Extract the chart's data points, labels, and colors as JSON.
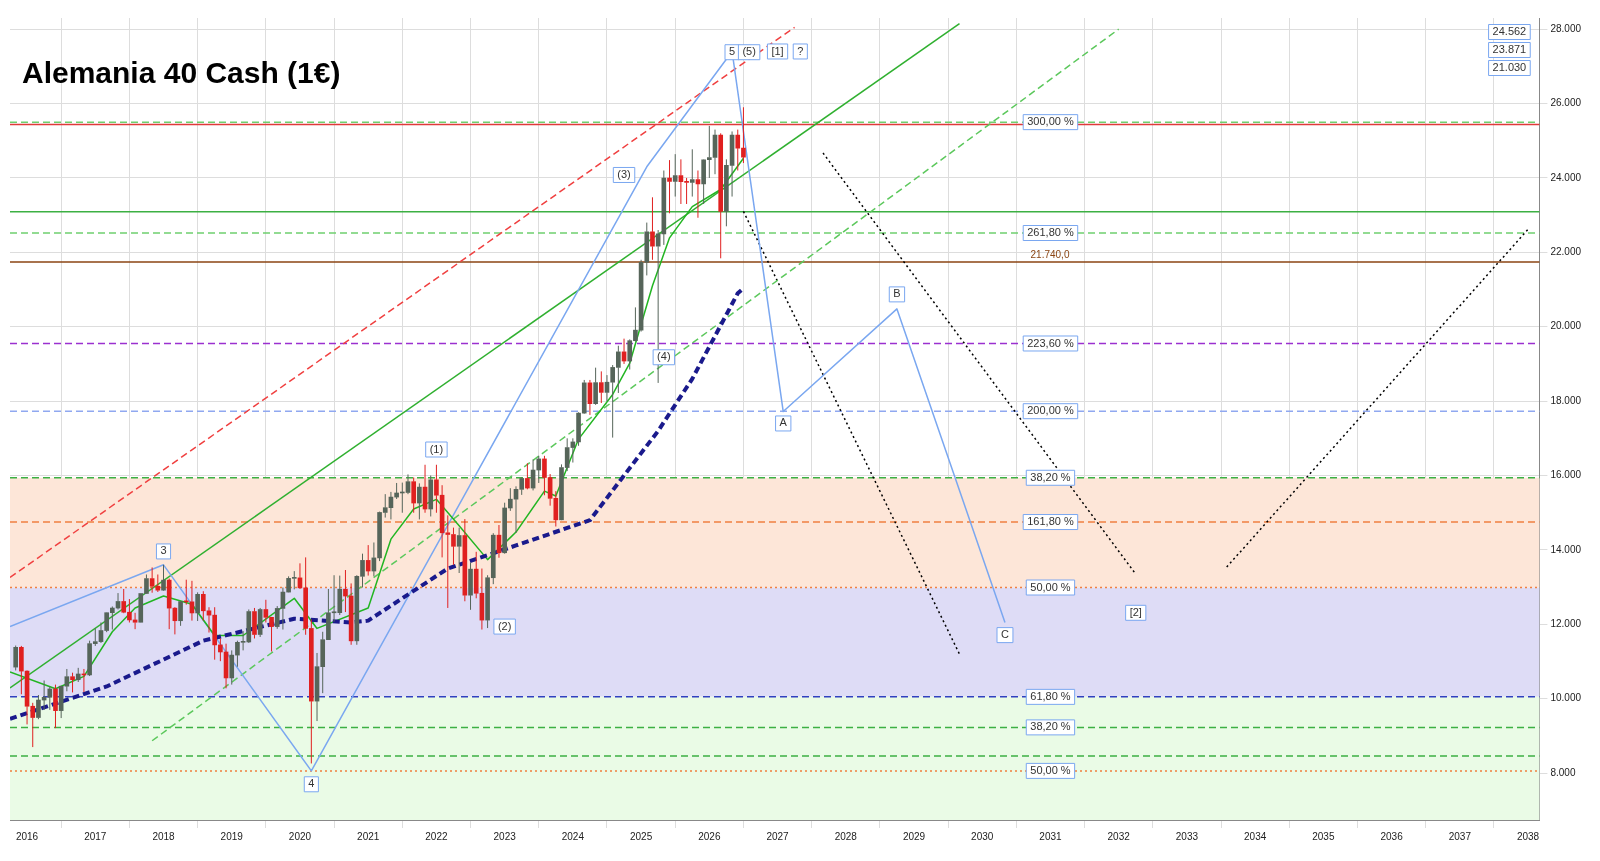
{
  "chart_data": {
    "type": "candlestick",
    "title": "Alemania 40 Cash (1€)",
    "x": [
      "2015-11",
      "2015-12",
      "2016-01",
      "2016-02",
      "2016-03",
      "2016-04",
      "2016-05",
      "2016-06",
      "2016-07",
      "2016-08",
      "2016-09",
      "2016-10",
      "2016-11",
      "2016-12",
      "2017-01",
      "2017-02",
      "2017-03",
      "2017-04",
      "2017-05",
      "2017-06",
      "2017-07",
      "2017-08",
      "2017-09",
      "2017-10",
      "2017-11",
      "2017-12",
      "2018-01",
      "2018-02",
      "2018-03",
      "2018-04",
      "2018-05",
      "2018-06",
      "2018-07",
      "2018-08",
      "2018-09",
      "2018-10",
      "2018-11",
      "2018-12",
      "2019-01",
      "2019-02",
      "2019-03",
      "2019-04",
      "2019-05",
      "2019-06",
      "2019-07",
      "2019-08",
      "2019-09",
      "2019-10",
      "2019-11",
      "2019-12",
      "2020-01",
      "2020-02",
      "2020-03",
      "2020-04",
      "2020-05",
      "2020-06",
      "2020-07",
      "2020-08",
      "2020-09",
      "2020-10",
      "2020-11",
      "2020-12",
      "2021-01",
      "2021-02",
      "2021-03",
      "2021-04",
      "2021-05",
      "2021-06",
      "2021-07",
      "2021-08",
      "2021-09",
      "2021-10",
      "2021-11",
      "2021-12",
      "2022-01",
      "2022-02",
      "2022-03",
      "2022-04",
      "2022-05",
      "2022-06",
      "2022-07",
      "2022-08",
      "2022-09",
      "2022-10",
      "2022-11",
      "2022-12",
      "2023-01",
      "2023-02",
      "2023-03",
      "2023-04",
      "2023-05",
      "2023-06",
      "2023-07",
      "2023-08",
      "2023-09",
      "2023-10",
      "2023-11",
      "2023-12",
      "2024-01",
      "2024-02",
      "2024-03",
      "2024-04",
      "2024-05",
      "2024-06",
      "2024-07",
      "2024-08",
      "2024-09",
      "2024-10",
      "2024-11",
      "2024-12",
      "2025-01",
      "2025-02",
      "2025-03",
      "2025-04",
      "2025-05",
      "2025-06",
      "2025-07",
      "2025-08",
      "2025-09",
      "2025-10",
      "2025-11",
      "2025-12",
      "2026-01",
      "2026-02",
      "2026-03",
      "2026-04",
      "2026-05",
      "2026-06",
      "2026-07"
    ],
    "ohlc": [
      [
        10850,
        11430,
        10760,
        11382
      ],
      [
        11382,
        11420,
        10120,
        10743
      ],
      [
        10743,
        10760,
        9310,
        9798
      ],
      [
        9798,
        9890,
        8700,
        9495
      ],
      [
        9495,
        10100,
        9450,
        9965
      ],
      [
        9965,
        10490,
        9700,
        10039
      ],
      [
        10039,
        10330,
        9700,
        10263
      ],
      [
        10263,
        10380,
        9210,
        9680
      ],
      [
        9680,
        10340,
        9480,
        10337
      ],
      [
        10337,
        10800,
        10200,
        10593
      ],
      [
        10593,
        10700,
        10170,
        10511
      ],
      [
        10511,
        10830,
        10450,
        10665
      ],
      [
        10665,
        10800,
        10180,
        10640
      ],
      [
        10640,
        11560,
        10610,
        11481
      ],
      [
        11481,
        11890,
        11420,
        11535
      ],
      [
        11535,
        12050,
        11500,
        11834
      ],
      [
        11834,
        12320,
        11790,
        12313
      ],
      [
        12313,
        12480,
        11860,
        12438
      ],
      [
        12438,
        12840,
        12400,
        12615
      ],
      [
        12615,
        12950,
        12300,
        12325
      ],
      [
        12325,
        12680,
        12050,
        12118
      ],
      [
        12118,
        12310,
        11870,
        12056
      ],
      [
        12056,
        12830,
        12050,
        12829
      ],
      [
        12829,
        13340,
        12820,
        13230
      ],
      [
        13230,
        13530,
        12850,
        13024
      ],
      [
        13024,
        13340,
        12870,
        12918
      ],
      [
        12918,
        13600,
        12900,
        13189
      ],
      [
        13189,
        13230,
        11870,
        12436
      ],
      [
        12436,
        12460,
        11730,
        12097
      ],
      [
        12097,
        12620,
        11960,
        12612
      ],
      [
        12612,
        13200,
        12530,
        12605
      ],
      [
        12605,
        13170,
        12100,
        12306
      ],
      [
        12306,
        12860,
        12090,
        12806
      ],
      [
        12806,
        12890,
        12100,
        12364
      ],
      [
        12364,
        12460,
        11780,
        12247
      ],
      [
        12247,
        12460,
        11050,
        11447
      ],
      [
        11447,
        11620,
        11010,
        11257
      ],
      [
        11257,
        11480,
        10280,
        10559
      ],
      [
        10559,
        11300,
        10380,
        11173
      ],
      [
        11173,
        11560,
        10860,
        11516
      ],
      [
        11516,
        11820,
        11300,
        11526
      ],
      [
        11526,
        12400,
        11500,
        12344
      ],
      [
        12344,
        12440,
        11620,
        11727
      ],
      [
        11727,
        12440,
        11660,
        12399
      ],
      [
        12399,
        12660,
        12050,
        12189
      ],
      [
        12189,
        12200,
        11270,
        11939
      ],
      [
        11939,
        12490,
        11880,
        12428
      ],
      [
        12428,
        12990,
        11860,
        12867
      ],
      [
        12867,
        13290,
        12860,
        13236
      ],
      [
        13236,
        13430,
        12940,
        13249
      ],
      [
        13249,
        13640,
        12950,
        12981
      ],
      [
        12981,
        13800,
        11720,
        11890
      ],
      [
        11890,
        12130,
        8260,
        9936
      ],
      [
        9936,
        11230,
        9400,
        10862
      ],
      [
        10862,
        11800,
        10150,
        11587
      ],
      [
        11587,
        12950,
        11580,
        12311
      ],
      [
        12311,
        13320,
        12070,
        12313
      ],
      [
        12313,
        13310,
        12250,
        12945
      ],
      [
        12945,
        13460,
        12330,
        12761
      ],
      [
        12761,
        13100,
        11450,
        11556
      ],
      [
        11556,
        13320,
        11450,
        13291
      ],
      [
        13291,
        13900,
        12990,
        13719
      ],
      [
        13719,
        14130,
        13310,
        13433
      ],
      [
        13433,
        14200,
        13290,
        13786
      ],
      [
        13786,
        15030,
        13700,
        15008
      ],
      [
        15008,
        15500,
        14870,
        15136
      ],
      [
        15136,
        15560,
        14820,
        15421
      ],
      [
        15421,
        15800,
        15370,
        15531
      ],
      [
        15531,
        15810,
        15000,
        15544
      ],
      [
        15544,
        16030,
        15500,
        15835
      ],
      [
        15835,
        15950,
        15000,
        15261
      ],
      [
        15261,
        15790,
        14820,
        15689
      ],
      [
        15689,
        16290,
        15000,
        15100
      ],
      [
        15100,
        16000,
        14900,
        15885
      ],
      [
        15885,
        16290,
        15000,
        15471
      ],
      [
        15471,
        15740,
        13800,
        14461
      ],
      [
        14461,
        14930,
        12440,
        14415
      ],
      [
        14415,
        14600,
        13600,
        14098
      ],
      [
        14098,
        14600,
        13380,
        14388
      ],
      [
        14388,
        14830,
        12620,
        12784
      ],
      [
        12784,
        13660,
        12390,
        13484
      ],
      [
        13484,
        13950,
        12700,
        12835
      ],
      [
        12835,
        13500,
        11860,
        12114
      ],
      [
        12114,
        13320,
        11900,
        13253
      ],
      [
        13253,
        14450,
        13080,
        14397
      ],
      [
        14397,
        14670,
        13790,
        13924
      ],
      [
        13924,
        15270,
        13900,
        15128
      ],
      [
        15128,
        15660,
        15050,
        15365
      ],
      [
        15365,
        15710,
        14460,
        15629
      ],
      [
        15629,
        15950,
        15480,
        15922
      ],
      [
        15922,
        16330,
        15630,
        15664
      ],
      [
        15664,
        16430,
        15600,
        16148
      ],
      [
        16148,
        16530,
        15800,
        16447
      ],
      [
        16447,
        16530,
        15470,
        15947
      ],
      [
        15947,
        16040,
        15190,
        15387
      ],
      [
        15387,
        15580,
        14630,
        14810
      ],
      [
        14810,
        16300,
        14800,
        16215
      ],
      [
        16215,
        17000,
        16120,
        16752
      ],
      [
        16752,
        17000,
        16350,
        16904
      ],
      [
        16904,
        17700,
        16800,
        17678
      ],
      [
        17678,
        18570,
        17660,
        18492
      ],
      [
        18492,
        18570,
        17630,
        17932
      ],
      [
        17932,
        18900,
        17900,
        18498
      ],
      [
        18498,
        18800,
        17950,
        18235
      ],
      [
        18235,
        18700,
        18000,
        18509
      ],
      [
        18509,
        18970,
        17020,
        18907
      ],
      [
        18907,
        19490,
        18220,
        19325
      ],
      [
        19325,
        19680,
        19000,
        19078
      ],
      [
        19078,
        19660,
        18850,
        19626
      ],
      [
        19626,
        20520,
        19600,
        19909
      ],
      [
        19909,
        21800,
        19870,
        21732
      ],
      [
        21732,
        22800,
        21380,
        22551
      ],
      [
        22551,
        23480,
        21800,
        22163
      ],
      [
        22163,
        22600,
        18490,
        22497
      ],
      [
        22497,
        24200,
        22200,
        23997
      ],
      [
        23997,
        24480,
        23050,
        23909
      ],
      [
        23909,
        24640,
        23500,
        24065
      ],
      [
        24065,
        24500,
        23300,
        23902
      ],
      [
        23902,
        24000,
        23300,
        23881
      ],
      [
        23881,
        24770,
        23500,
        23958
      ],
      [
        23958,
        24200,
        22930,
        23837
      ],
      [
        23837,
        24500,
        23300,
        24490
      ],
      [
        24490,
        25400,
        24000,
        24550
      ],
      [
        24550,
        25300,
        24100,
        25150
      ],
      [
        25150,
        25200,
        21840,
        23100
      ],
      [
        23100,
        24500,
        22700,
        24340
      ],
      [
        24340,
        25250,
        23500,
        25150
      ],
      [
        25150,
        25300,
        24200,
        24800
      ],
      [
        24800,
        25900,
        24400,
        24562
      ]
    ],
    "colors": [
      "#56655a",
      "#e02020",
      "#e02020",
      "#e02020",
      "#56655a",
      "#56655a",
      "#56655a",
      "#e02020",
      "#56655a",
      "#56655a",
      "#e02020",
      "#56655a",
      "#e02020",
      "#56655a",
      "#56655a",
      "#56655a",
      "#56655a",
      "#56655a",
      "#56655a",
      "#e02020",
      "#e02020",
      "#e02020",
      "#56655a",
      "#56655a",
      "#e02020",
      "#e02020",
      "#56655a",
      "#e02020",
      "#e02020",
      "#56655a",
      "#e02020",
      "#e02020",
      "#56655a",
      "#e02020",
      "#e02020",
      "#e02020",
      "#e02020",
      "#e02020",
      "#56655a",
      "#56655a",
      "#56655a",
      "#56655a",
      "#e02020",
      "#56655a",
      "#e02020",
      "#e02020",
      "#56655a",
      "#56655a",
      "#56655a",
      "#56655a",
      "#e02020",
      "#e02020",
      "#e02020",
      "#56655a",
      "#56655a",
      "#56655a",
      "#56655a",
      "#56655a",
      "#e02020",
      "#e02020",
      "#56655a",
      "#56655a",
      "#e02020",
      "#56655a",
      "#56655a",
      "#56655a",
      "#56655a",
      "#56655a",
      "#56655a",
      "#56655a",
      "#e02020",
      "#56655a",
      "#e02020",
      "#56655a",
      "#e02020",
      "#e02020",
      "#e02020",
      "#e02020",
      "#56655a",
      "#e02020",
      "#56655a",
      "#e02020",
      "#e02020",
      "#56655a",
      "#56655a",
      "#e02020",
      "#56655a",
      "#56655a",
      "#56655a",
      "#56655a",
      "#e02020",
      "#56655a",
      "#56655a",
      "#e02020",
      "#e02020",
      "#e02020",
      "#56655a",
      "#56655a",
      "#56655a",
      "#56655a",
      "#56655a",
      "#e02020",
      "#56655a",
      "#e02020",
      "#56655a",
      "#56655a",
      "#56655a",
      "#e02020",
      "#56655a",
      "#56655a",
      "#56655a",
      "#56655a",
      "#e02020",
      "#56655a",
      "#56655a",
      "#e02020",
      "#56655a",
      "#e02020",
      "#e02020",
      "#56655a",
      "#e02020",
      "#56655a",
      "#56655a",
      "#56655a",
      "#e02020",
      "#56655a",
      "#56655a",
      "#e02020",
      "#e02020"
    ],
    "series": [
      {
        "type": "line",
        "color": "#1a1a8c",
        "line_style": "dashed",
        "x": [
          "2015-10",
          "2017-03",
          "2018-08",
          "2019-12",
          "2020-10",
          "2021-01",
          "2022-03",
          "2023-03",
          "2024-04",
          "2025-04",
          "2025-10",
          "2026-06",
          "2026-07"
        ],
        "values": [
          9460,
          10330,
          11560,
          12150,
          12050,
          12100,
          13500,
          14120,
          14800,
          17200,
          18600,
          20900,
          21030
        ]
      },
      {
        "type": "line",
        "color": "#22b522",
        "line_style": "solid",
        "x": [
          "2015-10",
          "2016-06",
          "2016-11",
          "2017-04",
          "2017-08",
          "2018-01",
          "2018-06",
          "2018-10",
          "2019-03",
          "2019-12",
          "2020-04",
          "2021-01",
          "2021-05",
          "2021-09",
          "2022-01",
          "2022-05",
          "2022-10",
          "2023-03",
          "2023-08",
          "2023-10",
          "2024-02",
          "2024-08",
          "2024-11",
          "2025-03",
          "2025-06",
          "2025-10",
          "2026-03",
          "2026-07"
        ],
        "values": [
          10720,
          10270,
          10600,
          11800,
          12440,
          12760,
          12540,
          11700,
          11700,
          12700,
          11890,
          12440,
          14290,
          15100,
          15360,
          14650,
          13740,
          14480,
          15580,
          15450,
          16980,
          18180,
          19020,
          21100,
          22390,
          23230,
          23690,
          24530
        ]
      },
      {
        "type": "line",
        "color": "#7aa7f0",
        "line_style": "solid",
        "x": [
          "2015-10",
          "2018-01",
          "2020-03",
          "2025-02",
          "2026-05",
          "2027-02",
          "2028-10",
          "2030-05"
        ],
        "values": [
          11940,
          13600,
          8060,
          24300,
          27400,
          17720,
          20480,
          12050
        ]
      },
      {
        "type": "line",
        "color": "#f04040",
        "line_style": "dashed",
        "x": [
          "2015-10",
          "2027-04"
        ],
        "values": [
          13260,
          28050
        ]
      },
      {
        "type": "line",
        "color": "#30b030",
        "line_style": "solid",
        "x": [
          "2015-10",
          "2029-09"
        ],
        "values": [
          10290,
          28150
        ]
      },
      {
        "type": "line",
        "color": "#5cc85c",
        "line_style": "dashed",
        "x": [
          "2017-11",
          "2032-01"
        ],
        "values": [
          8870,
          28000
        ]
      },
      {
        "type": "line",
        "color": "#000000",
        "line_style": "dotted",
        "x": [
          "2026-07",
          "2029-09"
        ],
        "values": [
          23100,
          11200
        ]
      },
      {
        "type": "line",
        "color": "#000000",
        "line_style": "dotted",
        "x": [
          "2027-09",
          "2032-04"
        ],
        "values": [
          24670,
          13350
        ]
      },
      {
        "type": "line",
        "color": "#000000",
        "line_style": "dotted",
        "x": [
          "2033-08",
          "2038-01"
        ],
        "values": [
          13540,
          22620
        ]
      }
    ],
    "ref_lines": [
      {
        "axis": "y",
        "value": 25440,
        "color": "#e03a3a",
        "line_style": "solid"
      },
      {
        "axis": "y",
        "value": 25500,
        "color": "#6fcf6f",
        "line_style": "dashed"
      },
      {
        "axis": "y",
        "value": 23090,
        "color": "#3cb043",
        "line_style": "solid"
      },
      {
        "axis": "y",
        "value": 22520,
        "color": "#6fcf6f",
        "line_style": "dashed"
      },
      {
        "axis": "y",
        "value": 21740,
        "label": "21.740,0",
        "color": "#8b4513",
        "line_style": "solid"
      },
      {
        "axis": "y",
        "value": 19550,
        "color": "#9b30d0",
        "line_style": "dashed"
      },
      {
        "axis": "y",
        "value": 17730,
        "color": "#90a8f0",
        "line_style": "dashed"
      },
      {
        "axis": "y",
        "value": 15940,
        "color": "#3cb043",
        "line_style": "dashed"
      },
      {
        "axis": "y",
        "value": 14750,
        "color": "#f08040",
        "line_style": "dashed"
      },
      {
        "axis": "y",
        "value": 12990,
        "color": "#f08040",
        "line_style": "dotted"
      },
      {
        "axis": "y",
        "value": 10050,
        "color": "#3040c0",
        "line_style": "dashed"
      },
      {
        "axis": "y",
        "value": 9230,
        "color": "#3cb043",
        "line_style": "dashed"
      },
      {
        "axis": "y",
        "value": 8460,
        "color": "#3cb043",
        "line_style": "dashed"
      },
      {
        "axis": "y",
        "value": 8060,
        "color": "#f08040",
        "line_style": "dotted"
      }
    ],
    "bands": [
      {
        "axis": "y",
        "from": 12990,
        "to": 15940,
        "color": "#fde6d8"
      },
      {
        "axis": "y",
        "from": 10050,
        "to": 12990,
        "color": "#dedcf6"
      },
      {
        "axis": "y",
        "from": 6740,
        "to": 10050,
        "color": "#eafbe6"
      }
    ],
    "annotations": [
      {
        "text": "3",
        "x": "2018-01",
        "y": 13960
      },
      {
        "text": "4",
        "x": "2020-03",
        "y": 7700
      },
      {
        "text": "(1)",
        "x": "2022-01",
        "y": 16700
      },
      {
        "text": "(2)",
        "x": "2023-01",
        "y": 11940
      },
      {
        "text": "(3)",
        "x": "2024-10",
        "y": 24080
      },
      {
        "text": "(4)",
        "x": "2025-05",
        "y": 19180
      },
      {
        "text": "5",
        "x": "2026-05",
        "y": 27380
      },
      {
        "text": "(5)",
        "x": "2026-08",
        "y": 27380
      },
      {
        "text": "[1]",
        "x": "2027-01",
        "y": 27400
      },
      {
        "text": "?",
        "x": "2027-05",
        "y": 27400
      },
      {
        "text": "A",
        "x": "2027-02",
        "y": 17400
      },
      {
        "text": "B",
        "x": "2028-10",
        "y": 20870
      },
      {
        "text": "C",
        "x": "2030-05",
        "y": 11710
      },
      {
        "text": "[2]",
        "x": "2032-04",
        "y": 12310
      },
      {
        "text": "300,00 %",
        "x": "2031-01",
        "y": 25500
      },
      {
        "text": "261,80 %",
        "x": "2031-01",
        "y": 22520
      },
      {
        "text": "223,60 %",
        "x": "2031-01",
        "y": 19550
      },
      {
        "text": "200,00 %",
        "x": "2031-01",
        "y": 17730
      },
      {
        "text": "38,20 %",
        "x": "2031-01",
        "y": 15940
      },
      {
        "text": "161,80 %",
        "x": "2031-01",
        "y": 14750
      },
      {
        "text": "50,00 %",
        "x": "2031-01",
        "y": 12990
      },
      {
        "text": "61,80 %",
        "x": "2031-01",
        "y": 10050
      },
      {
        "text": "38,20 %",
        "x": "2031-01",
        "y": 9230
      },
      {
        "text": "50,00 %",
        "x": "2031-01",
        "y": 8060
      },
      "24.562",
      "23.871",
      "21.030"
    ],
    "xlim": [
      "2015-10",
      "2038-03"
    ],
    "xticks": [
      "2016",
      "2017",
      "2018",
      "2019",
      "2020",
      "2021",
      "2022",
      "2023",
      "2024",
      "2025",
      "2026",
      "2027",
      "2028",
      "2029",
      "2030",
      "2031",
      "2032",
      "2033",
      "2034",
      "2035",
      "2036",
      "2037",
      "2038"
    ],
    "ylim": [
      6740,
      28300
    ],
    "yticks": [
      {
        "value": 8000,
        "label": "8.000"
      },
      {
        "value": 10000,
        "label": "10.000"
      },
      {
        "value": 12000,
        "label": "12.000"
      },
      {
        "value": 14000,
        "label": "14.000"
      },
      {
        "value": 16000,
        "label": "16.000"
      },
      {
        "value": 18000,
        "label": "18.000"
      },
      {
        "value": 20000,
        "label": "20.000"
      },
      {
        "value": 22000,
        "label": "22.000"
      },
      {
        "value": 24000,
        "label": "24.000"
      },
      {
        "value": 26000,
        "label": "26.000"
      },
      {
        "value": 28000,
        "label": "28.000"
      }
    ],
    "grid": true
  }
}
